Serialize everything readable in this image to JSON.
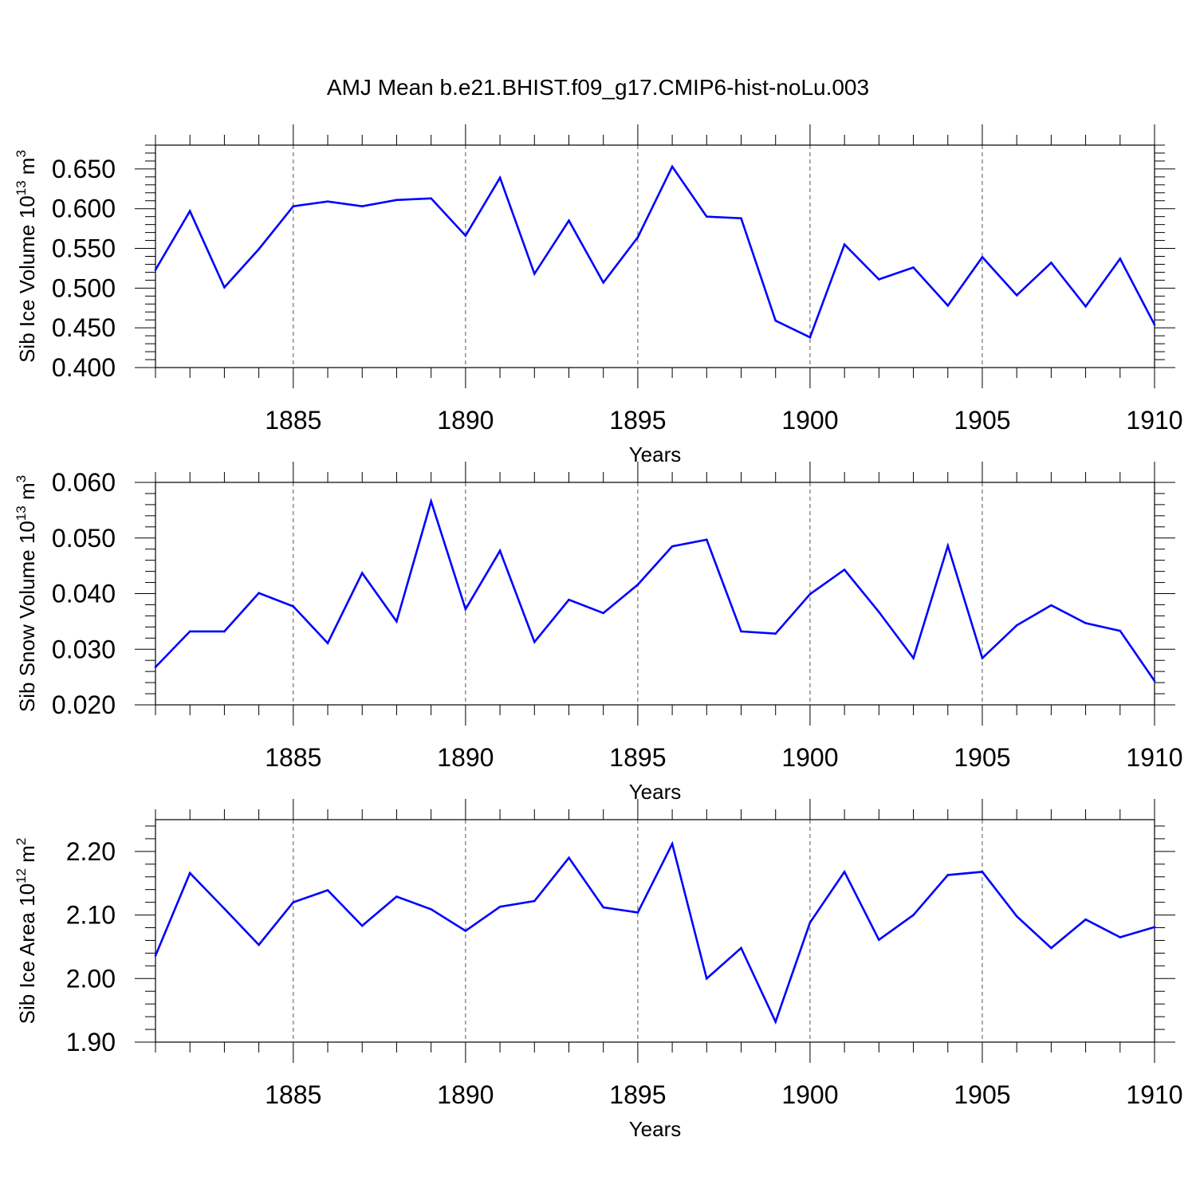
{
  "title": "AMJ Mean b.e21.BHIST.f09_g17.CMIP6-hist-noLu.003",
  "colors": {
    "line": "#0000ff",
    "axis": "#000000",
    "grid": "#555555"
  },
  "chart_data": [
    {
      "type": "line",
      "xlabel": "Years",
      "ylabel": {
        "text": "Sib Ice Volume 10",
        "exp": "13",
        "unit": " m",
        "unit_exp": "3"
      },
      "xlim": [
        1881,
        1910
      ],
      "ylim": [
        0.4,
        0.68
      ],
      "yticks": [
        0.4,
        0.45,
        0.5,
        0.55,
        0.6,
        0.65
      ],
      "ytick_labels": [
        "0.400",
        "0.450",
        "0.500",
        "0.550",
        "0.600",
        "0.650"
      ],
      "xticks": [
        1885,
        1890,
        1895,
        1900,
        1905,
        1910
      ],
      "xtick_labels": [
        "1885",
        "1890",
        "1895",
        "1900",
        "1905",
        "1910"
      ],
      "grid": "vertical dashed at major x ticks",
      "x": [
        1881,
        1882,
        1883,
        1884,
        1885,
        1886,
        1887,
        1888,
        1889,
        1890,
        1891,
        1892,
        1893,
        1894,
        1895,
        1896,
        1897,
        1898,
        1899,
        1900,
        1901,
        1902,
        1903,
        1904,
        1905,
        1906,
        1907,
        1908,
        1909,
        1910
      ],
      "values": [
        0.523,
        0.597,
        0.501,
        0.549,
        0.603,
        0.609,
        0.603,
        0.611,
        0.613,
        0.566,
        0.639,
        0.518,
        0.585,
        0.507,
        0.564,
        0.653,
        0.59,
        0.588,
        0.459,
        0.438,
        0.555,
        0.511,
        0.526,
        0.478,
        0.539,
        0.491,
        0.532,
        0.477,
        0.537,
        0.454
      ]
    },
    {
      "type": "line",
      "xlabel": "Years",
      "ylabel": {
        "text": "Sib Snow Volume 10",
        "exp": "13",
        "unit": " m",
        "unit_exp": "3"
      },
      "xlim": [
        1881,
        1910
      ],
      "ylim": [
        0.02,
        0.06
      ],
      "yticks": [
        0.02,
        0.03,
        0.04,
        0.05,
        0.06
      ],
      "ytick_labels": [
        "0.020",
        "0.030",
        "0.040",
        "0.050",
        "0.060"
      ],
      "xticks": [
        1885,
        1890,
        1895,
        1900,
        1905,
        1910
      ],
      "xtick_labels": [
        "1885",
        "1890",
        "1895",
        "1900",
        "1905",
        "1910"
      ],
      "grid": "vertical dashed at major x ticks",
      "x": [
        1881,
        1882,
        1883,
        1884,
        1885,
        1886,
        1887,
        1888,
        1889,
        1890,
        1891,
        1892,
        1893,
        1894,
        1895,
        1896,
        1897,
        1898,
        1899,
        1900,
        1901,
        1902,
        1903,
        1904,
        1905,
        1906,
        1907,
        1908,
        1909,
        1910
      ],
      "values": [
        0.0268,
        0.0332,
        0.0332,
        0.0401,
        0.0377,
        0.0311,
        0.0437,
        0.035,
        0.0566,
        0.0372,
        0.0477,
        0.0313,
        0.0389,
        0.0365,
        0.0416,
        0.0485,
        0.0497,
        0.0332,
        0.0328,
        0.0399,
        0.0443,
        0.0367,
        0.0284,
        0.0486,
        0.0284,
        0.0343,
        0.0379,
        0.0347,
        0.0333,
        0.0243
      ]
    },
    {
      "type": "line",
      "xlabel": "Years",
      "ylabel": {
        "text": "Sib Ice Area 10",
        "exp": "12",
        "unit": " m",
        "unit_exp": "2"
      },
      "xlim": [
        1881,
        1910
      ],
      "ylim": [
        1.9,
        2.25
      ],
      "yticks": [
        1.9,
        2.0,
        2.1,
        2.2
      ],
      "ytick_labels": [
        "1.90",
        "2.00",
        "2.10",
        "2.20"
      ],
      "xticks": [
        1885,
        1890,
        1895,
        1900,
        1905,
        1910
      ],
      "xtick_labels": [
        "1885",
        "1890",
        "1895",
        "1900",
        "1905",
        "1910"
      ],
      "grid": "vertical dashed at major x ticks",
      "x": [
        1881,
        1882,
        1883,
        1884,
        1885,
        1886,
        1887,
        1888,
        1889,
        1890,
        1891,
        1892,
        1893,
        1894,
        1895,
        1896,
        1897,
        1898,
        1899,
        1900,
        1901,
        1902,
        1903,
        1904,
        1905,
        1906,
        1907,
        1908,
        1909,
        1910
      ],
      "values": [
        2.036,
        2.166,
        2.11,
        2.053,
        2.12,
        2.139,
        2.083,
        2.129,
        2.109,
        2.075,
        2.113,
        2.122,
        2.19,
        2.112,
        2.104,
        2.212,
        2.0,
        2.048,
        1.932,
        2.088,
        2.168,
        2.061,
        2.1,
        2.163,
        2.168,
        2.098,
        2.048,
        2.093,
        2.065,
        2.081
      ]
    }
  ]
}
